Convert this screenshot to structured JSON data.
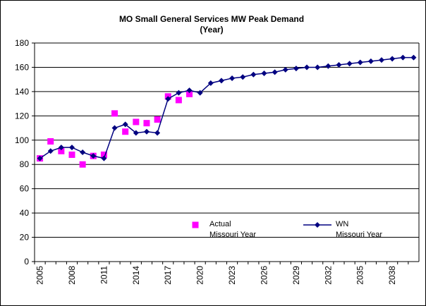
{
  "chart_data": {
    "type": "line",
    "title": "MO Small General Services MW Peak Demand",
    "subtitle": "(Year)",
    "categories": [
      2005,
      null,
      null,
      2008,
      null,
      null,
      2011,
      null,
      null,
      2014,
      null,
      null,
      2017,
      null,
      null,
      2020,
      null,
      null,
      2023,
      null,
      null,
      2026,
      null,
      null,
      2029,
      null,
      null,
      2032,
      null,
      null,
      2035,
      null,
      null,
      2038,
      null,
      null
    ],
    "series": [
      {
        "name": "Actual\nMissouri Year",
        "color": "#ff00ff",
        "marker": "square",
        "line": false,
        "values": [
          85,
          99,
          91,
          88,
          80,
          87,
          88,
          122,
          107,
          115,
          114,
          117,
          136,
          133,
          138,
          null,
          null,
          null,
          null,
          null,
          null,
          null,
          null,
          null,
          null,
          null,
          null,
          null,
          null,
          null,
          null,
          null,
          null,
          null,
          null,
          null
        ]
      },
      {
        "name": "WN\nMissouri Year",
        "color": "#000080",
        "marker": "diamond",
        "line": true,
        "values": [
          85,
          91,
          94,
          94,
          90,
          87,
          85,
          110,
          113,
          106,
          107,
          106,
          134,
          139,
          141,
          139,
          147,
          149,
          151,
          152,
          154,
          155,
          156,
          158,
          159,
          160,
          160,
          161,
          162,
          163,
          164,
          165,
          166,
          167,
          168,
          168
        ]
      }
    ],
    "ylim": [
      0,
      180
    ],
    "yticks": [
      0,
      20,
      40,
      60,
      80,
      100,
      120,
      140,
      160,
      180
    ],
    "grid": true
  }
}
